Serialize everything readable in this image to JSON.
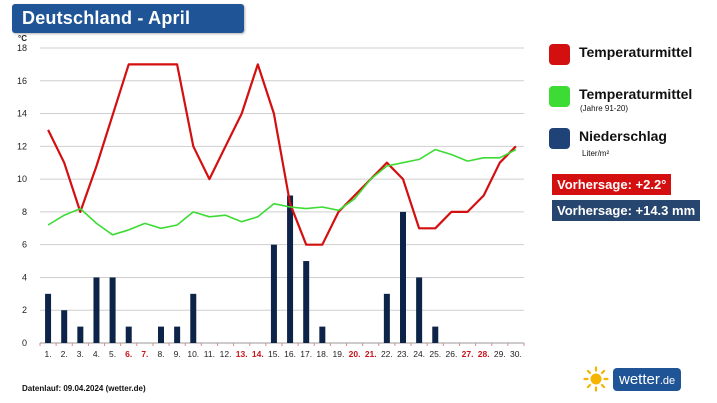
{
  "header": {
    "title": "Deutschland - April"
  },
  "chart_data": {
    "type": "line",
    "title": "Deutschland - April",
    "ylabel": "°C",
    "ylim": [
      0,
      18
    ],
    "yticks": [
      0,
      2,
      4,
      6,
      8,
      10,
      12,
      14,
      16,
      18
    ],
    "grid": true,
    "legend_position": "right",
    "categories": [
      "1.",
      "2.",
      "3.",
      "4.",
      "5.",
      "6.",
      "7.",
      "8.",
      "9.",
      "10.",
      "11.",
      "12.",
      "13.",
      "14.",
      "15.",
      "16.",
      "17.",
      "18.",
      "19.",
      "20.",
      "21.",
      "22.",
      "23.",
      "24.",
      "25.",
      "26.",
      "27.",
      "28.",
      "29.",
      "30."
    ],
    "highlighted_days": [
      "6.",
      "7.",
      "13.",
      "14.",
      "20.",
      "21.",
      "27.",
      "28."
    ],
    "series": [
      {
        "name": "Temperaturmittel",
        "type": "line",
        "color": "#d40f0f",
        "values": [
          13,
          11,
          8,
          10.8,
          13.9,
          17,
          17,
          17,
          17,
          12,
          10,
          12,
          14,
          17,
          14,
          8.5,
          6,
          6,
          8,
          9,
          10,
          11,
          10,
          7,
          7,
          8,
          8,
          9,
          11,
          12
        ]
      },
      {
        "name": "Temperaturmittel (Jahre 91-20)",
        "type": "line",
        "color": "#3ddc35",
        "values": [
          7.2,
          7.8,
          8.2,
          7.3,
          6.6,
          6.9,
          7.3,
          7.0,
          7.2,
          8.0,
          7.7,
          7.8,
          7.4,
          7.7,
          8.5,
          8.3,
          8.2,
          8.3,
          8.1,
          8.8,
          10.0,
          10.8,
          11.0,
          11.2,
          11.8,
          11.5,
          11.1,
          11.3,
          11.3,
          11.8
        ]
      },
      {
        "name": "Niederschlag",
        "type": "bar",
        "unit": "Liter/m²",
        "color": "#0e2348",
        "values": [
          3,
          2,
          1,
          4,
          4,
          1,
          0,
          1,
          1,
          3,
          0,
          0,
          0,
          0,
          6,
          9,
          5,
          1,
          0,
          0,
          0,
          3,
          8,
          4,
          1,
          0,
          0,
          0,
          0,
          0
        ]
      }
    ]
  },
  "legend": {
    "items": [
      {
        "label": "Temperaturmittel",
        "sub": "",
        "color": "#d40f0f"
      },
      {
        "label": "Temperaturmittel",
        "sub": "(Jahre 91-20)",
        "color": "#3ddc35"
      },
      {
        "label": "Niederschlag",
        "sub": "Liter/m²",
        "color": "#1f4377"
      }
    ]
  },
  "forecast": {
    "temperature": {
      "text": "Vorhersage: +2.2°",
      "color": "#d40f0f"
    },
    "precipitation": {
      "text": "Vorhersage: +14.3 mm",
      "color": "#27466f"
    }
  },
  "footer": {
    "text": "Datenlauf: 09.04.2024 (wetter.de)"
  },
  "brand": {
    "name": "wetter",
    "tld": ".de",
    "logo_icon": "sun-icon"
  }
}
